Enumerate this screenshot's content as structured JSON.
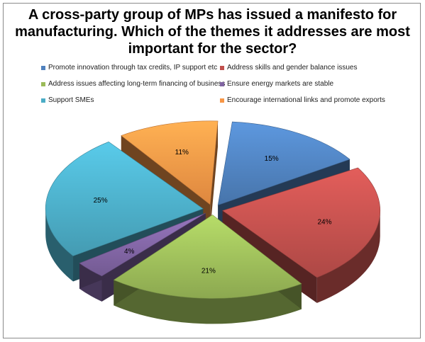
{
  "chart_data": {
    "type": "pie",
    "title": "A cross-party group of MPs has issued a manifesto for manufacturing. Which of the themes it addresses are most important for the sector?",
    "title_lines": [
      "A cross-party group of MPs has issued a manifesto for",
      "manufacturing. Which of the themes it addresses are most",
      "important for the sector?"
    ],
    "style": "3d-exploded",
    "legend_position": "top",
    "slices": [
      {
        "label": "Promote innovation through tax credits, IP support etc",
        "value": 15,
        "value_label": "15%",
        "color": "#4f81bd"
      },
      {
        "label": "Address skills and gender balance issues",
        "value": 24,
        "value_label": "24%",
        "color": "#c0504d"
      },
      {
        "label": "Address issues affecting long-term financing of business",
        "value": 21,
        "value_label": "21%",
        "color": "#9bbb59"
      },
      {
        "label": "Ensure energy markets are stable",
        "value": 4,
        "value_label": "4%",
        "color": "#8064a2"
      },
      {
        "label": "Support SMEs",
        "value": 25,
        "value_label": "25%",
        "color": "#4bacc6"
      },
      {
        "label": "Encourage international links and promote exports",
        "value": 11,
        "value_label": "11%",
        "color": "#f79646"
      }
    ]
  }
}
